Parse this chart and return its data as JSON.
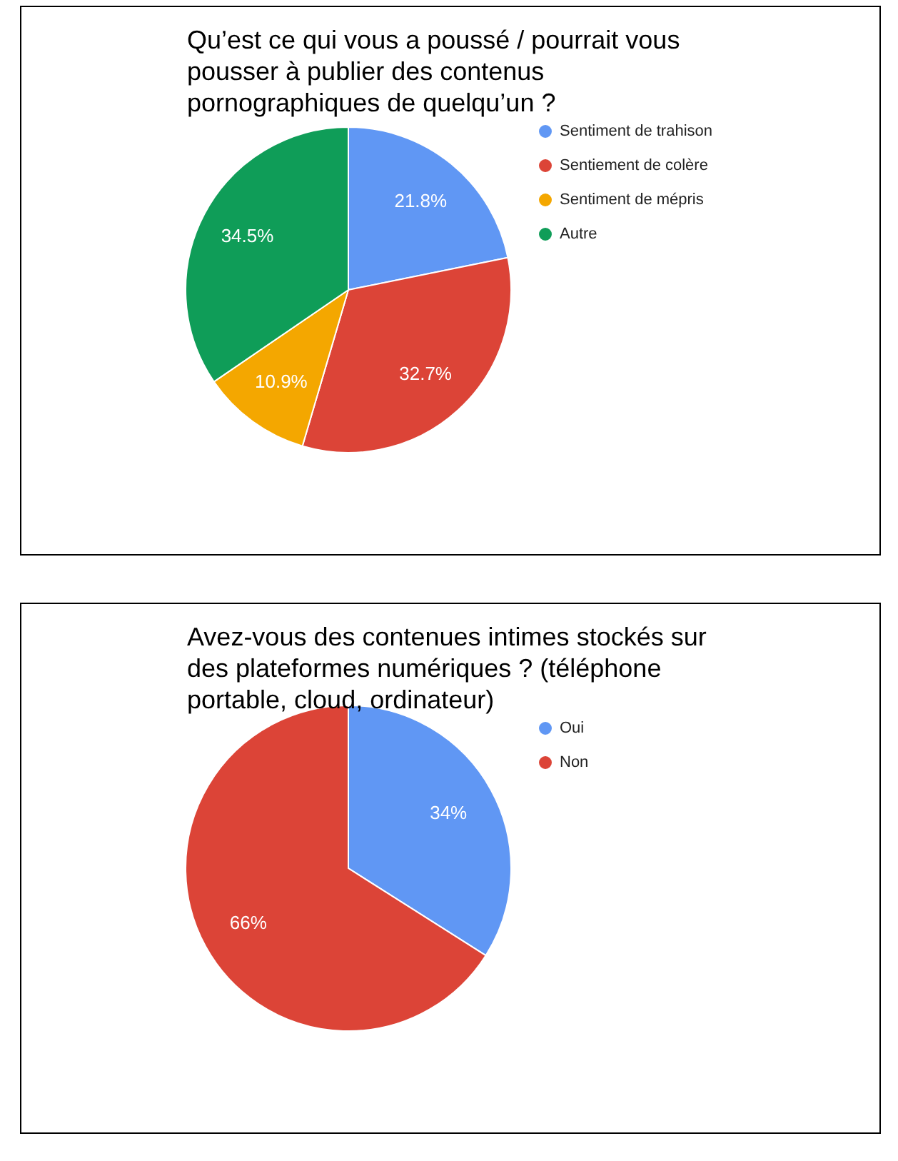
{
  "chart_data": [
    {
      "type": "pie",
      "title": "Qu’est ce qui vous a poussé / pourrait vous pousser à publier des contenus pornographiques de quelqu’un ?",
      "categories": [
        "Sentiment de trahison",
        "Sentiement de colère",
        "Sentiment de mépris",
        "Autre"
      ],
      "values": [
        21.8,
        32.7,
        10.9,
        34.5
      ],
      "colors": [
        "#6097f4",
        "#dc4437",
        "#f4a700",
        "#0f9d58"
      ],
      "value_labels": [
        "21.8%",
        "32.7%",
        "10.9%",
        "34.5%"
      ],
      "legend": "right"
    },
    {
      "type": "pie",
      "title": "Avez-vous des contenues intimes stockés sur des plateformes numériques ? (téléphone portable, cloud, ordinateur)",
      "categories": [
        "Oui",
        "Non"
      ],
      "values": [
        34,
        66
      ],
      "colors": [
        "#6097f4",
        "#dc4437"
      ],
      "value_labels": [
        "34%",
        "66%"
      ],
      "legend": "right"
    }
  ]
}
